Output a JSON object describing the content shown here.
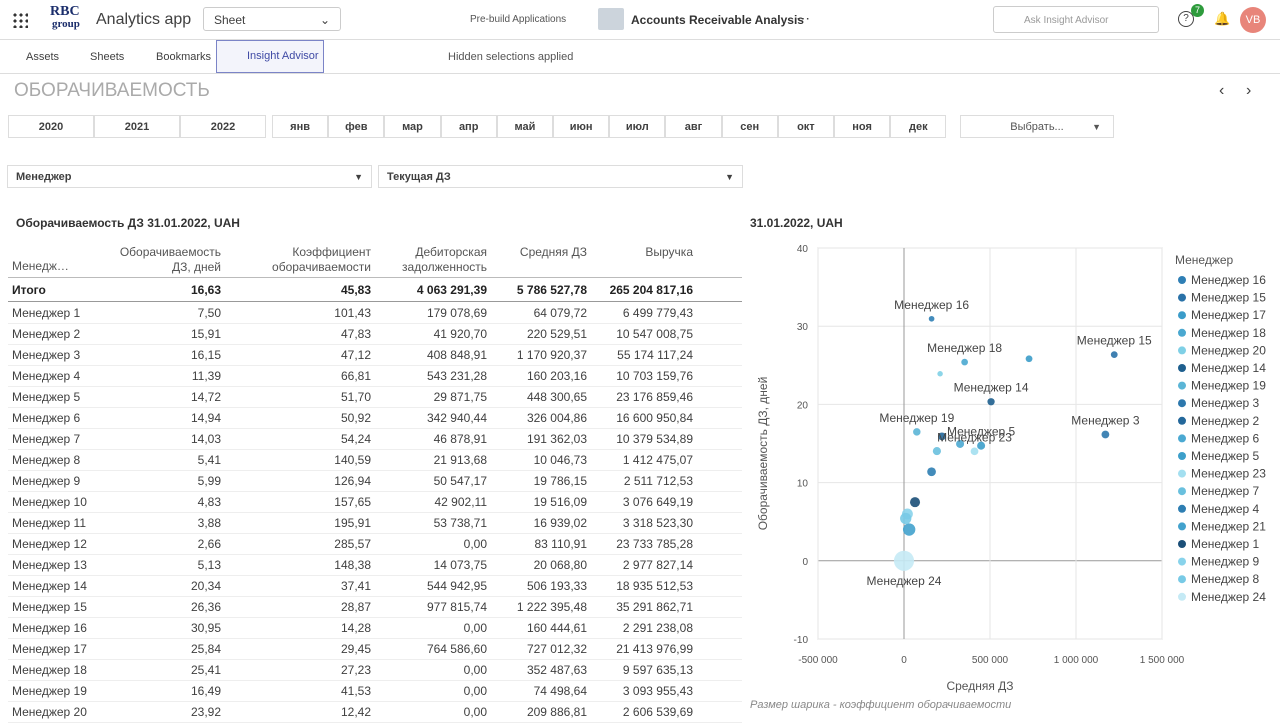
{
  "header": {
    "logo_top": "RBC",
    "logo_bottom": "group",
    "app_name": "Analytics app",
    "view": "Sheet",
    "prebuild": "Pre-build Applications",
    "document": "Accounts Receivable Analysis",
    "search_placeholder": "Ask Insight Advisor",
    "notifications": "7",
    "avatar": "VB"
  },
  "toolbar": {
    "items": [
      "Assets",
      "Sheets",
      "Bookmarks",
      "Insight Advisor"
    ],
    "hidden_selections": "Hidden selections applied"
  },
  "sheet": {
    "title": "ОБОРАЧИВАЕМОСТЬ",
    "years": [
      "2020",
      "2021",
      "2022"
    ],
    "months": [
      "янв",
      "фев",
      "мар",
      "апр",
      "май",
      "июн",
      "июл",
      "авг",
      "сен",
      "окт",
      "ноя",
      "дек"
    ],
    "date_picker": "Выбрать...",
    "filters": [
      "Менеджер",
      "Текущая ДЗ"
    ]
  },
  "table": {
    "title": "Оборачиваемость ДЗ 31.01.2022, UAH",
    "columns": [
      "Менедж…",
      "Оборачиваемость ДЗ, дней",
      "Коэффициент оборачиваемости",
      "Дебиторская задолженность",
      "Средняя ДЗ",
      "Выручка"
    ],
    "total": [
      "Итого",
      "16,63",
      "45,83",
      "4 063 291,39",
      "5 786 527,78",
      "265 204 817,16"
    ],
    "rows": [
      [
        "Менеджер 1",
        "7,50",
        "101,43",
        "179 078,69",
        "64 079,72",
        "6 499 779,43"
      ],
      [
        "Менеджер 2",
        "15,91",
        "47,83",
        "41 920,70",
        "220 529,51",
        "10 547 008,75"
      ],
      [
        "Менеджер 3",
        "16,15",
        "47,12",
        "408 848,91",
        "1 170 920,37",
        "55 174 117,24"
      ],
      [
        "Менеджер 4",
        "11,39",
        "66,81",
        "543 231,28",
        "160 203,16",
        "10 703 159,76"
      ],
      [
        "Менеджер 5",
        "14,72",
        "51,70",
        "29 871,75",
        "448 300,65",
        "23 176 859,46"
      ],
      [
        "Менеджер 6",
        "14,94",
        "50,92",
        "342 940,44",
        "326 004,86",
        "16 600 950,84"
      ],
      [
        "Менеджер 7",
        "14,03",
        "54,24",
        "46 878,91",
        "191 362,03",
        "10 379 534,89"
      ],
      [
        "Менеджер 8",
        "5,41",
        "140,59",
        "21 913,68",
        "10 046,73",
        "1 412 475,07"
      ],
      [
        "Менеджер 9",
        "5,99",
        "126,94",
        "50 547,17",
        "19 786,15",
        "2 511 712,53"
      ],
      [
        "Менеджер 10",
        "4,83",
        "157,65",
        "42 902,11",
        "19 516,09",
        "3 076 649,19"
      ],
      [
        "Менеджер 11",
        "3,88",
        "195,91",
        "53 738,71",
        "16 939,02",
        "3 318 523,30"
      ],
      [
        "Менеджер 12",
        "2,66",
        "285,57",
        "0,00",
        "83 110,91",
        "23 733 785,28"
      ],
      [
        "Менеджер 13",
        "5,13",
        "148,38",
        "14 073,75",
        "20 068,80",
        "2 977 827,14"
      ],
      [
        "Менеджер 14",
        "20,34",
        "37,41",
        "544 942,95",
        "506 193,33",
        "18 935 512,53"
      ],
      [
        "Менеджер 15",
        "26,36",
        "28,87",
        "977 815,74",
        "1 222 395,48",
        "35 291 862,71"
      ],
      [
        "Менеджер 16",
        "30,95",
        "14,28",
        "0,00",
        "160 444,61",
        "2 291 238,08"
      ],
      [
        "Менеджер 17",
        "25,84",
        "29,45",
        "764 586,60",
        "727 012,32",
        "21 413 976,99"
      ],
      [
        "Менеджер 18",
        "25,41",
        "27,23",
        "0,00",
        "352 487,63",
        "9 597 635,13"
      ],
      [
        "Менеджер 19",
        "16,49",
        "41,53",
        "0,00",
        "74 498,64",
        "3 093 955,43"
      ],
      [
        "Менеджер 20",
        "23,92",
        "12,42",
        "0,00",
        "209 886,81",
        "2 606 539,69"
      ]
    ]
  },
  "chart_data": {
    "type": "scatter",
    "title": "31.01.2022, UAH",
    "x_label": "Средняя ДЗ",
    "y_label": "Оборачиваемость ДЗ, дней",
    "legend_title": "Менеджер",
    "note": "Размер шарика - коэффициент оборачиваемости",
    "xlim": [
      -500000,
      1500000
    ],
    "xticks": [
      {
        "value": -500000,
        "label": "-500 000"
      },
      0,
      {
        "value": 500000,
        "label": "500 000"
      },
      {
        "value": 1000000,
        "label": "1 000 000"
      },
      {
        "value": 1500000,
        "label": "1 500 000"
      }
    ],
    "ylim": [
      -10,
      40
    ],
    "yticks": [
      -10,
      0,
      10,
      20,
      30,
      40
    ],
    "grid": true,
    "series": [
      {
        "name": "Менеджер 16",
        "color": "#2f7fb5",
        "x": 160444.61,
        "y": 30.95,
        "size": 14.28,
        "labeled": true
      },
      {
        "name": "Менеджер 15",
        "color": "#2a72a8",
        "x": 1222395.48,
        "y": 26.36,
        "size": 28.87,
        "labeled": true
      },
      {
        "name": "Менеджер 17",
        "color": "#3b9cc9",
        "x": 727012.32,
        "y": 25.84,
        "size": 29.45,
        "labeled": false
      },
      {
        "name": "Менеджер 18",
        "color": "#4aa8d0",
        "x": 352487.63,
        "y": 25.41,
        "size": 27.23,
        "labeled": true
      },
      {
        "name": "Менеджер 20",
        "color": "#7fd0e6",
        "x": 209886.81,
        "y": 23.92,
        "size": 12.42,
        "labeled": false
      },
      {
        "name": "Менеджер 14",
        "color": "#1e5f8e",
        "x": 506193.33,
        "y": 20.34,
        "size": 37.41,
        "labeled": true
      },
      {
        "name": "Менеджер 19",
        "color": "#5bb5d6",
        "x": 74498.64,
        "y": 16.49,
        "size": 41.53,
        "labeled": true
      },
      {
        "name": "Менеджер 3",
        "color": "#2d78ad",
        "x": 1170920.37,
        "y": 16.15,
        "size": 47.12,
        "labeled": true
      },
      {
        "name": "Менеджер 2",
        "color": "#24689b",
        "x": 220529.51,
        "y": 15.91,
        "size": 47.83,
        "labeled": false
      },
      {
        "name": "Менеджер 6",
        "color": "#4ba9d2",
        "x": 326004.86,
        "y": 14.94,
        "size": 50.92,
        "labeled": false
      },
      {
        "name": "Менеджер 5",
        "color": "#3d9fca",
        "x": 448300.65,
        "y": 14.72,
        "size": 51.7,
        "labeled": true
      },
      {
        "name": "Менеджер 23",
        "color": "#a3dff0",
        "x": 410000,
        "y": 14,
        "size": 45,
        "labeled": true
      },
      {
        "name": "Менеджер 7",
        "color": "#69c0de",
        "x": 191362.03,
        "y": 14.03,
        "size": 54.24,
        "labeled": false
      },
      {
        "name": "Менеджер 4",
        "color": "#2e7eb2",
        "x": 160203.16,
        "y": 11.39,
        "size": 66.81,
        "labeled": false
      },
      {
        "name": "Менеджер 21",
        "color": "#43a2cd",
        "x": 30000,
        "y": 4,
        "size": 180,
        "labeled": false
      },
      {
        "name": "Менеджер 1",
        "color": "#1b4f78",
        "x": 64079.72,
        "y": 7.5,
        "size": 101.43,
        "labeled": false
      },
      {
        "name": "Менеджер 9",
        "color": "#88d3eb",
        "x": 19786.15,
        "y": 5.99,
        "size": 126.94,
        "labeled": false
      },
      {
        "name": "Менеджер 8",
        "color": "#78cae6",
        "x": 10046.73,
        "y": 5.41,
        "size": 140.59,
        "labeled": false
      },
      {
        "name": "Менеджер 24",
        "color": "#c5eaf5",
        "x": 0,
        "y": 0,
        "size": 600,
        "labeled": true
      }
    ]
  }
}
